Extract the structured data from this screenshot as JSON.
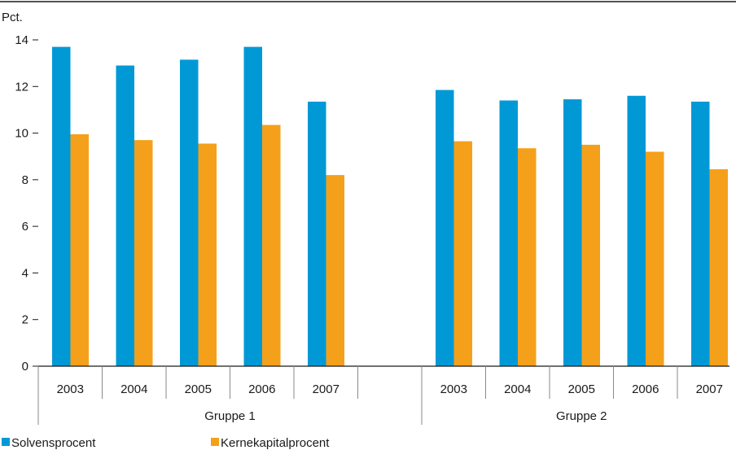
{
  "chart_data": {
    "type": "bar",
    "unit_label": "Pct.",
    "ylim": [
      0,
      14
    ],
    "yticks": [
      0,
      2,
      4,
      6,
      8,
      10,
      12,
      14
    ],
    "grid": false,
    "legend_position": "bottom-left",
    "colors": {
      "Solvensprocent": "#0099d6",
      "Kernekapitalprocent": "#f5a01a"
    },
    "groups": [
      {
        "label": "Gruppe 1",
        "categories": [
          "2003",
          "2004",
          "2005",
          "2006",
          "2007",
          ""
        ],
        "series": [
          {
            "name": "Solvensprocent",
            "values": [
              13.7,
              12.9,
              13.15,
              13.7,
              11.35,
              null
            ]
          },
          {
            "name": "Kernekapitalprocent",
            "values": [
              9.95,
              9.7,
              9.55,
              10.35,
              8.2,
              null
            ]
          }
        ]
      },
      {
        "label": "Gruppe 2",
        "categories": [
          "2003",
          "2004",
          "2005",
          "2006",
          "2007"
        ],
        "series": [
          {
            "name": "Solvensprocent",
            "values": [
              11.85,
              11.4,
              11.45,
              11.6,
              11.35
            ]
          },
          {
            "name": "Kernekapitalprocent",
            "values": [
              9.65,
              9.35,
              9.5,
              9.2,
              8.45
            ]
          }
        ]
      }
    ],
    "legend": [
      "Solvensprocent",
      "Kernekapitalprocent"
    ]
  }
}
